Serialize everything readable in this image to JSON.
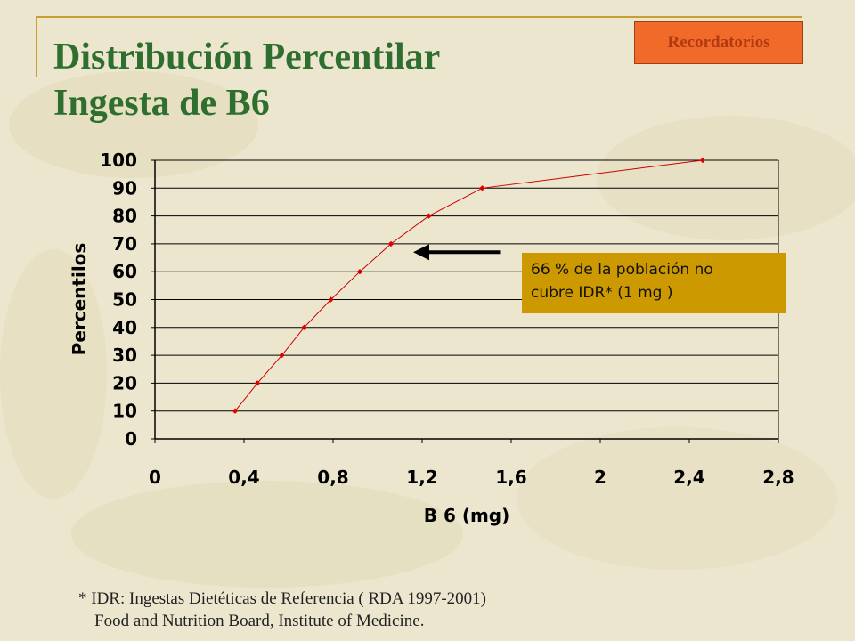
{
  "slide": {
    "title_line1": "Distribución Percentilar",
    "title_line2": "Ingesta de B6",
    "badge": "Recordatorios",
    "callout_line1": "66 % de la población no",
    "callout_line2": "cubre IDR* (1 mg )",
    "footnote_line1": "* IDR: Ingestas Dietéticas de Referencia ( RDA 1997-2001)",
    "footnote_line2": "Food and Nutrition Board, Institute of  Medicine."
  },
  "colors": {
    "title": "#2e6e2e",
    "badge_fill": "#f26a2a",
    "badge_text": "#b03a10",
    "callout_fill": "#cc9900",
    "series_line": "#cc0000",
    "gridline": "#000000"
  },
  "chart_data": {
    "type": "line",
    "title": "",
    "xlabel": "B 6 (mg)",
    "ylabel": "Percentilos",
    "xlim": [
      0,
      2.8
    ],
    "ylim": [
      0,
      100
    ],
    "x_ticks": [
      "0",
      "0,4",
      "0,8",
      "1,2",
      "1,6",
      "2",
      "2,4",
      "2,8"
    ],
    "x_tick_values": [
      0,
      0.4,
      0.8,
      1.2,
      1.6,
      2.0,
      2.4,
      2.8
    ],
    "y_ticks": [
      "0",
      "10",
      "20",
      "30",
      "40",
      "50",
      "60",
      "70",
      "80",
      "90",
      "100"
    ],
    "y_tick_values": [
      0,
      10,
      20,
      30,
      40,
      50,
      60,
      70,
      80,
      90,
      100
    ],
    "grid": "horizontal",
    "series": [
      {
        "x": [
          0.36,
          0.46,
          0.57,
          0.67,
          0.79,
          0.92,
          1.06,
          1.23,
          1.47,
          2.46
        ],
        "y": [
          10,
          20,
          30,
          40,
          50,
          60,
          70,
          80,
          90,
          100
        ]
      }
    ],
    "annotation": {
      "type": "arrow",
      "points_to": [
        1.16,
        67
      ],
      "from": [
        1.55,
        67
      ]
    }
  }
}
